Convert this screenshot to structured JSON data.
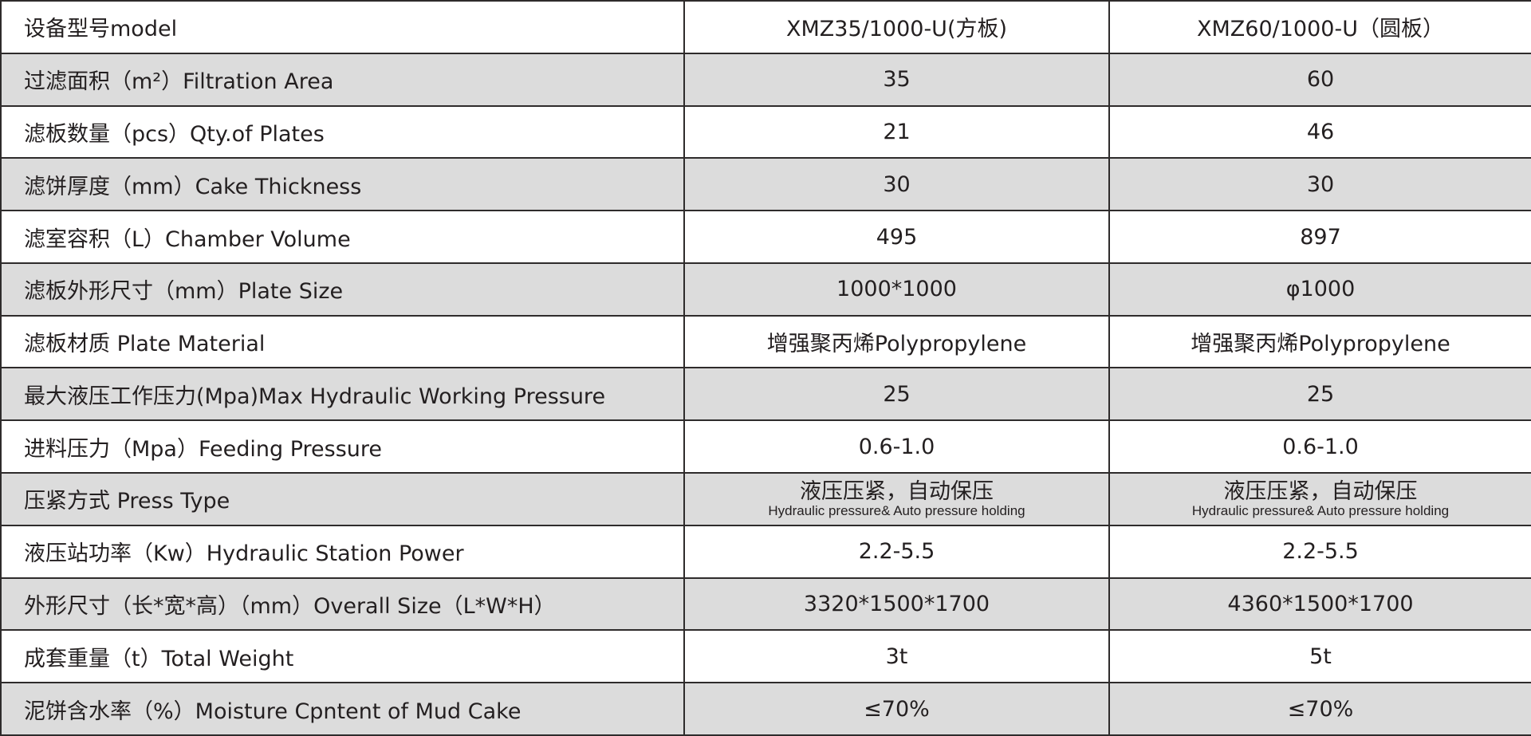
{
  "header": {
    "label": "设备型号model",
    "col1": "XMZ35/1000-U(方板)",
    "col2": "XMZ60/1000-U（圆板）"
  },
  "rows": [
    {
      "label": "过滤面积（m²）Filtration Area",
      "col1": "35",
      "col2": "60"
    },
    {
      "label": "滤板数量（pcs）Qty.of Plates",
      "col1": "21",
      "col2": "46"
    },
    {
      "label": "滤饼厚度（mm）Cake Thickness",
      "col1": "30",
      "col2": "30"
    },
    {
      "label": "滤室容积（L）Chamber Volume",
      "col1": "495",
      "col2": "897"
    },
    {
      "label": "滤板外形尺寸（mm）Plate Size",
      "col1": "1000*1000",
      "col2": "φ1000"
    },
    {
      "label": "滤板材质 Plate Material",
      "col1": "增强聚丙烯Polypropylene",
      "col2": "增强聚丙烯Polypropylene"
    },
    {
      "label": "最大液压工作压力(Mpa)Max Hydraulic Working Pressure",
      "col1": "25",
      "col2": "25"
    },
    {
      "label": "进料压力（Mpa）Feeding Pressure",
      "col1": "0.6-1.0",
      "col2": "0.6-1.0"
    },
    {
      "label": "压紧方式 Press Type",
      "col1": "液压压紧，自动保压",
      "col1_sub": "Hydraulic pressure& Auto pressure holding",
      "col2": "液压压紧，自动保压",
      "col2_sub": "Hydraulic pressure& Auto pressure holding"
    },
    {
      "label": "液压站功率（Kw）Hydraulic Station Power",
      "col1": "2.2-5.5",
      "col2": "2.2-5.5"
    },
    {
      "label": "外形尺寸（长*宽*高）（mm）Overall Size（L*W*H）",
      "col1": "3320*1500*1700",
      "col2": "4360*1500*1700"
    },
    {
      "label": "成套重量（t）Total Weight",
      "col1": "3t",
      "col2": "5t"
    },
    {
      "label": "泥饼含水率（%）Moisture Cpntent of Mud Cake",
      "col1": "≤70%",
      "col2": "≤70%"
    }
  ],
  "colors": {
    "shade": "#dcdcdc",
    "border": "#2e2b2b",
    "text": "#231f20"
  }
}
